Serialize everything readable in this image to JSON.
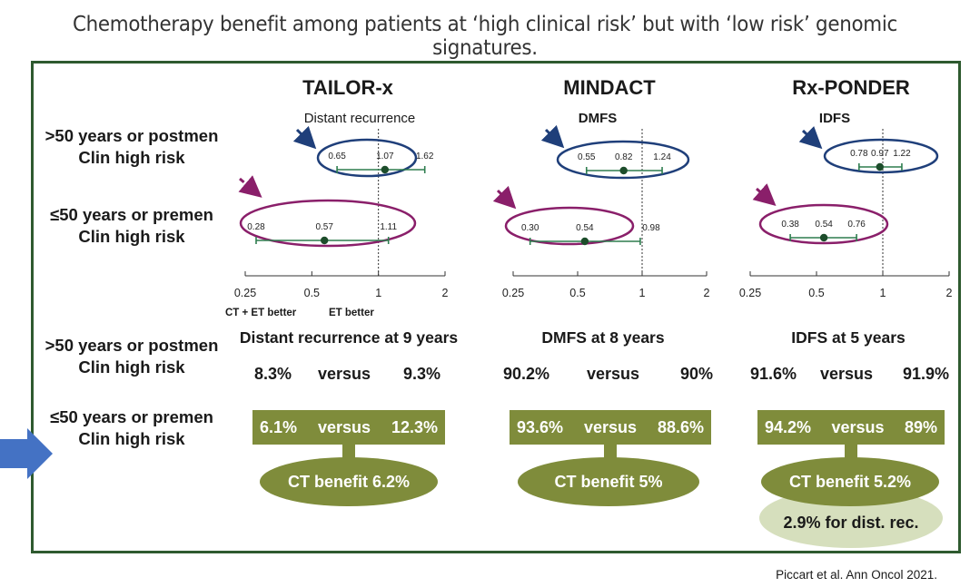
{
  "title": "Chemotherapy benefit among patients at ‘high clinical risk’ but with ‘low risk’ genomic signatures.",
  "row_labels": {
    "older": ">50 years or postmen",
    "younger": "≤50 years or premen",
    "clin_high": "Clin high risk"
  },
  "axis_notes": {
    "left": "CT + ET better",
    "right": "ET better"
  },
  "trials": [
    {
      "name": "TAILOR-x",
      "endpoint": "Distant recurrence",
      "results_header": "Distant recurrence at 9 years",
      "older": {
        "a": "8.3%",
        "vs": "versus",
        "b": "9.3%"
      },
      "younger": {
        "a": "6.1%",
        "vs": "versus",
        "b": "12.3%"
      },
      "benefit": "CT benefit 6.2%"
    },
    {
      "name": "MINDACT",
      "endpoint": "DMFS",
      "results_header": "DMFS at 8 years",
      "older": {
        "a": "90.2%",
        "vs": "versus",
        "b": "90%"
      },
      "younger": {
        "a": "93.6%",
        "vs": "versus",
        "b": "88.6%"
      },
      "benefit": "CT benefit 5%"
    },
    {
      "name": "Rx-PONDER",
      "endpoint": "IDFS",
      "results_header": "IDFS at 5 years",
      "older": {
        "a": "91.6%",
        "vs": "versus",
        "b": "91.9%"
      },
      "younger": {
        "a": "94.2%",
        "vs": "versus",
        "b": "89%"
      },
      "benefit": "CT benefit 5.2%",
      "extra": "2.9% for dist. rec."
    }
  ],
  "citation": "Piccart et al. Ann Oncol 2021.",
  "colors": {
    "frame": "#2e5a2f",
    "olive": "#7f8c3b",
    "light_olive": "#d6dfbd",
    "blue": "#1f3f7a",
    "purple": "#8a1f6a",
    "ci": "#2e7d4f",
    "dot": "#1d4d2b",
    "arrow_blue": "#4472c4"
  },
  "chart_data": [
    {
      "type": "forest",
      "title": "TAILOR-x",
      "subtitle": "Distant recurrence",
      "x_scale": "log",
      "xlim": [
        0.25,
        2
      ],
      "ticks": [
        "0.25",
        "0.5",
        "1",
        "2"
      ],
      "series": [
        {
          "name": ">50 years or postmen, Clin high risk",
          "lo": 0.65,
          "est": 1.07,
          "hi": 1.62,
          "labels": [
            "0.65",
            "1.07",
            "1.62"
          ]
        },
        {
          "name": "≤50 years or premen, Clin high risk",
          "lo": 0.28,
          "est": 0.57,
          "hi": 1.11,
          "labels": [
            "0.28",
            "0.57",
            "1.11"
          ]
        }
      ]
    },
    {
      "type": "forest",
      "title": "MINDACT",
      "subtitle": "DMFS",
      "x_scale": "log",
      "xlim": [
        0.25,
        2
      ],
      "ticks": [
        "0.25",
        "0.5",
        "1",
        "2"
      ],
      "series": [
        {
          "name": ">50 years or postmen, Clin high risk",
          "lo": 0.55,
          "est": 0.82,
          "hi": 1.24,
          "labels": [
            "0.55",
            "0.82",
            "1.24"
          ]
        },
        {
          "name": "≤50 years or premen, Clin high risk",
          "lo": 0.3,
          "est": 0.54,
          "hi": 0.98,
          "labels": [
            "0.30",
            "0.54",
            "0.98"
          ]
        }
      ]
    },
    {
      "type": "forest",
      "title": "Rx-PONDER",
      "subtitle": "IDFS",
      "x_scale": "log",
      "xlim": [
        0.25,
        2
      ],
      "ticks": [
        "0.25",
        "0.5",
        "1",
        "2"
      ],
      "series": [
        {
          "name": ">50 years or postmen, Clin high risk",
          "lo": 0.78,
          "est": 0.97,
          "hi": 1.22,
          "labels": [
            "0.78",
            "0.97",
            "1.22"
          ]
        },
        {
          "name": "≤50 years or premen, Clin high risk",
          "lo": 0.38,
          "est": 0.54,
          "hi": 0.76,
          "labels": [
            "0.38",
            "0.54",
            "0.76"
          ]
        }
      ]
    }
  ]
}
